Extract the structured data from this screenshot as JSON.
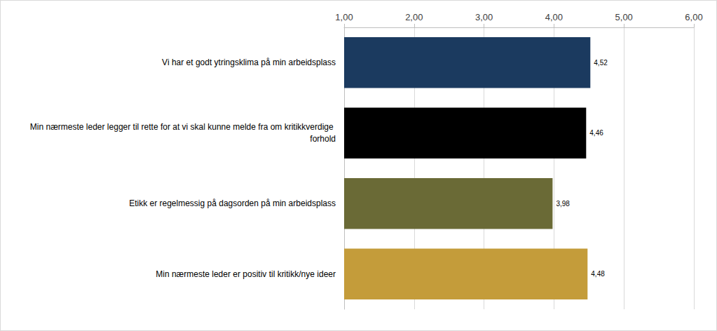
{
  "chart_data": {
    "type": "bar",
    "orientation": "horizontal",
    "categories": [
      "Vi har et godt ytringsklima på min arbeidsplass",
      "Min nærmeste leder legger til rette for at vi skal kunne melde fra om kritikkverdige forhold",
      "Etikk er regelmessig på dagsorden på min arbeidsplass",
      "Min nærmeste leder er positiv til kritikk/nye ideer"
    ],
    "values": [
      4.52,
      4.46,
      3.98,
      4.48
    ],
    "value_labels": [
      "4,52",
      "4,46",
      "3,98",
      "4,48"
    ],
    "colors": [
      "#1b3a5f",
      "#000000",
      "#6a6a36",
      "#c49c3a"
    ],
    "xlim": [
      1,
      6
    ],
    "xticks": [
      {
        "value": 1,
        "label": "1,00"
      },
      {
        "value": 2,
        "label": "2,00"
      },
      {
        "value": 3,
        "label": "3,00"
      },
      {
        "value": 4,
        "label": "4,00"
      },
      {
        "value": 5,
        "label": "5,00"
      },
      {
        "value": 6,
        "label": "6,00"
      }
    ],
    "grid": true,
    "data_labels": true
  }
}
